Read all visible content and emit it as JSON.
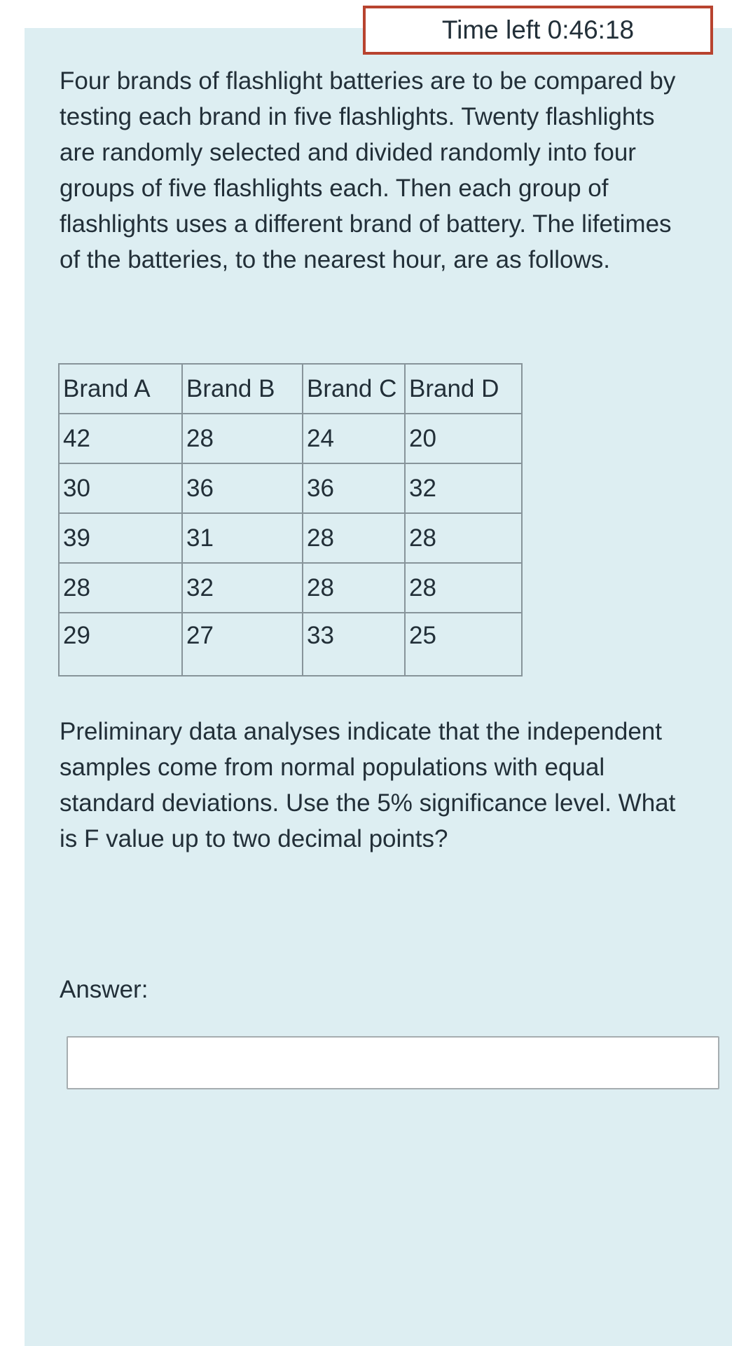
{
  "timer": {
    "label": "Time left 0:46:18"
  },
  "question": {
    "intro": "Four brands of flashlight batteries are to be compared by testing each brand in five flashlights. Twenty flashlights are randomly selected and divided randomly into four groups of five flashlights each. Then each group of flashlights uses a different brand of battery. The lifetimes of the batteries, to the nearest hour, are as follows.",
    "followup": "Preliminary data analyses indicate that the independent samples come from normal populations with equal standard deviations. Use the 5% significance level. What is F value up to two decimal points?",
    "answer_label": "Answer:",
    "answer_value": ""
  },
  "table": {
    "headers": [
      "Brand A",
      "Brand B",
      "Brand C",
      "Brand D"
    ],
    "rows": [
      [
        "42",
        "28",
        "24",
        "20"
      ],
      [
        "30",
        "36",
        "36",
        "32"
      ],
      [
        "39",
        "31",
        "28",
        "28"
      ],
      [
        "28",
        "32",
        "28",
        "28"
      ],
      [
        "29",
        "27",
        "33",
        "25"
      ]
    ]
  },
  "colors": {
    "panel_background": "#ddeef2",
    "text": "#222f38",
    "timer_border": "#b8432f",
    "table_border": "#87949a",
    "input_border": "#a6adb0"
  }
}
